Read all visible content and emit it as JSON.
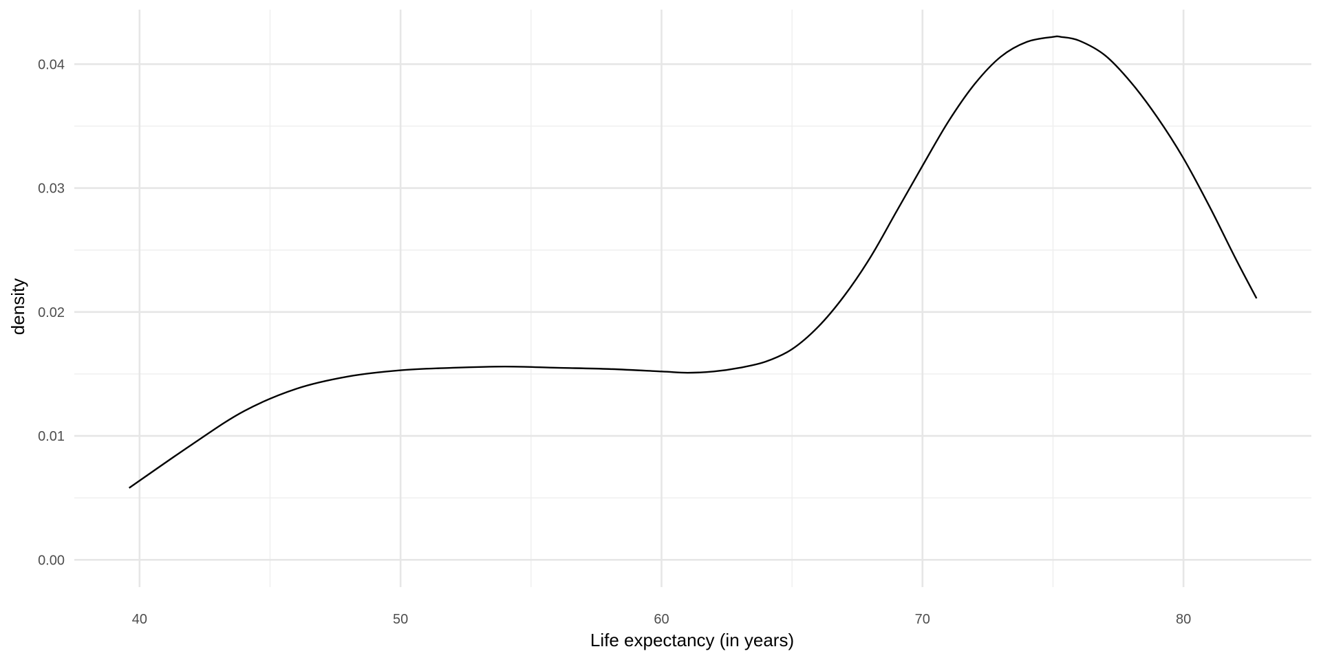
{
  "chart_data": {
    "type": "line",
    "title": "",
    "xlabel": "Life expectancy (in years)",
    "ylabel": "density",
    "xlim": [
      37.5,
      84.9
    ],
    "ylim": [
      -0.0022,
      0.0444
    ],
    "x_major_ticks": [
      40,
      50,
      60,
      70,
      80
    ],
    "x_minor_ticks": [
      45,
      55,
      65,
      75
    ],
    "y_major_ticks": [
      0.0,
      0.01,
      0.02,
      0.03,
      0.04
    ],
    "y_minor_ticks": [
      0.005,
      0.015,
      0.025,
      0.035
    ],
    "x_tick_labels": [
      "40",
      "50",
      "60",
      "70",
      "80"
    ],
    "y_tick_labels": [
      "0.00",
      "0.01",
      "0.02",
      "0.03",
      "0.04"
    ],
    "grid": true,
    "legend": "none",
    "line_color": "#000000",
    "grid_color": "#e6e6e6",
    "series": [
      {
        "x": [
          39.6,
          42.0,
          44.0,
          46.0,
          48.0,
          50.0,
          52.0,
          54.0,
          56.0,
          58.0,
          60.0,
          61.0,
          62.0,
          63.0,
          64.0,
          65.0,
          66.0,
          67.0,
          68.0,
          69.0,
          70.0,
          71.0,
          72.0,
          73.0,
          74.0,
          75.0,
          75.3,
          76.0,
          77.0,
          78.0,
          79.0,
          80.0,
          81.0,
          82.0,
          82.8
        ],
        "y": [
          0.0058,
          0.0093,
          0.012,
          0.0138,
          0.0148,
          0.0153,
          0.0155,
          0.0156,
          0.0155,
          0.0154,
          0.0152,
          0.0151,
          0.0152,
          0.0155,
          0.016,
          0.017,
          0.0188,
          0.0213,
          0.0244,
          0.0281,
          0.0318,
          0.0354,
          0.0384,
          0.0406,
          0.0418,
          0.0422,
          0.0422,
          0.0419,
          0.0407,
          0.0385,
          0.0357,
          0.0324,
          0.0285,
          0.0243,
          0.0211
        ]
      }
    ]
  }
}
